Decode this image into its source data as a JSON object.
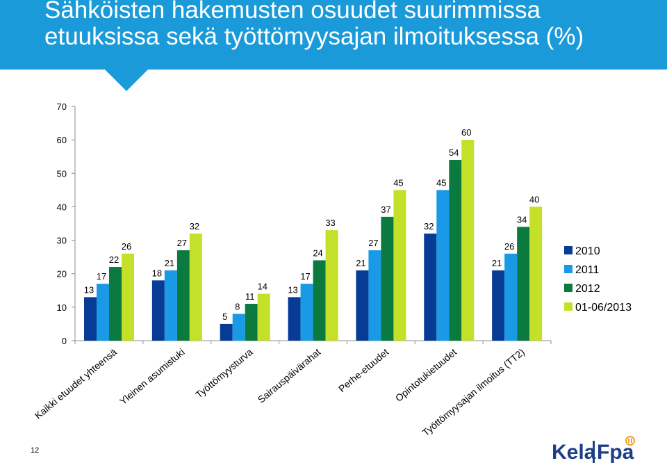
{
  "title_line1": "Sähköisten hakemusten osuudet suurimmissa",
  "title_line2": "etuuksissa sekä työttömyysajan ilmoituksessa (%)",
  "page_number": "12",
  "logo": {
    "kela": "Kela",
    "fpa": "Fpa"
  },
  "chart_data": {
    "type": "bar",
    "title": "Sähköisten hakemusten osuudet suurimmissa etuuksissa sekä työttömyysajan ilmoituksessa (%)",
    "categories": [
      "Kaikki etuudet yhteensä",
      "Yleinen asumistuki",
      "Työttömyysturva",
      "Sairauspäivärahat",
      "Perhe-etuudet",
      "Opintotukietuudet",
      "Työttömyysajan ilmoitus (TT2)"
    ],
    "series": [
      {
        "name": "2010",
        "color": "#063b96",
        "values": [
          13,
          18,
          5,
          13,
          21,
          32,
          21
        ]
      },
      {
        "name": "2011",
        "color": "#1a9ae6",
        "values": [
          17,
          21,
          8,
          17,
          27,
          45,
          26
        ]
      },
      {
        "name": "2012",
        "color": "#0a7a3e",
        "values": [
          22,
          27,
          11,
          24,
          37,
          54,
          34
        ]
      },
      {
        "name": "01-06/2013",
        "color": "#c5e028",
        "values": [
          26,
          32,
          14,
          33,
          45,
          60,
          40
        ]
      }
    ],
    "ylim": [
      0,
      70
    ],
    "yticks": [
      0,
      10,
      20,
      30,
      40,
      50,
      60,
      70
    ],
    "xlabel": "",
    "ylabel": "",
    "grid": false,
    "legend": "right"
  }
}
